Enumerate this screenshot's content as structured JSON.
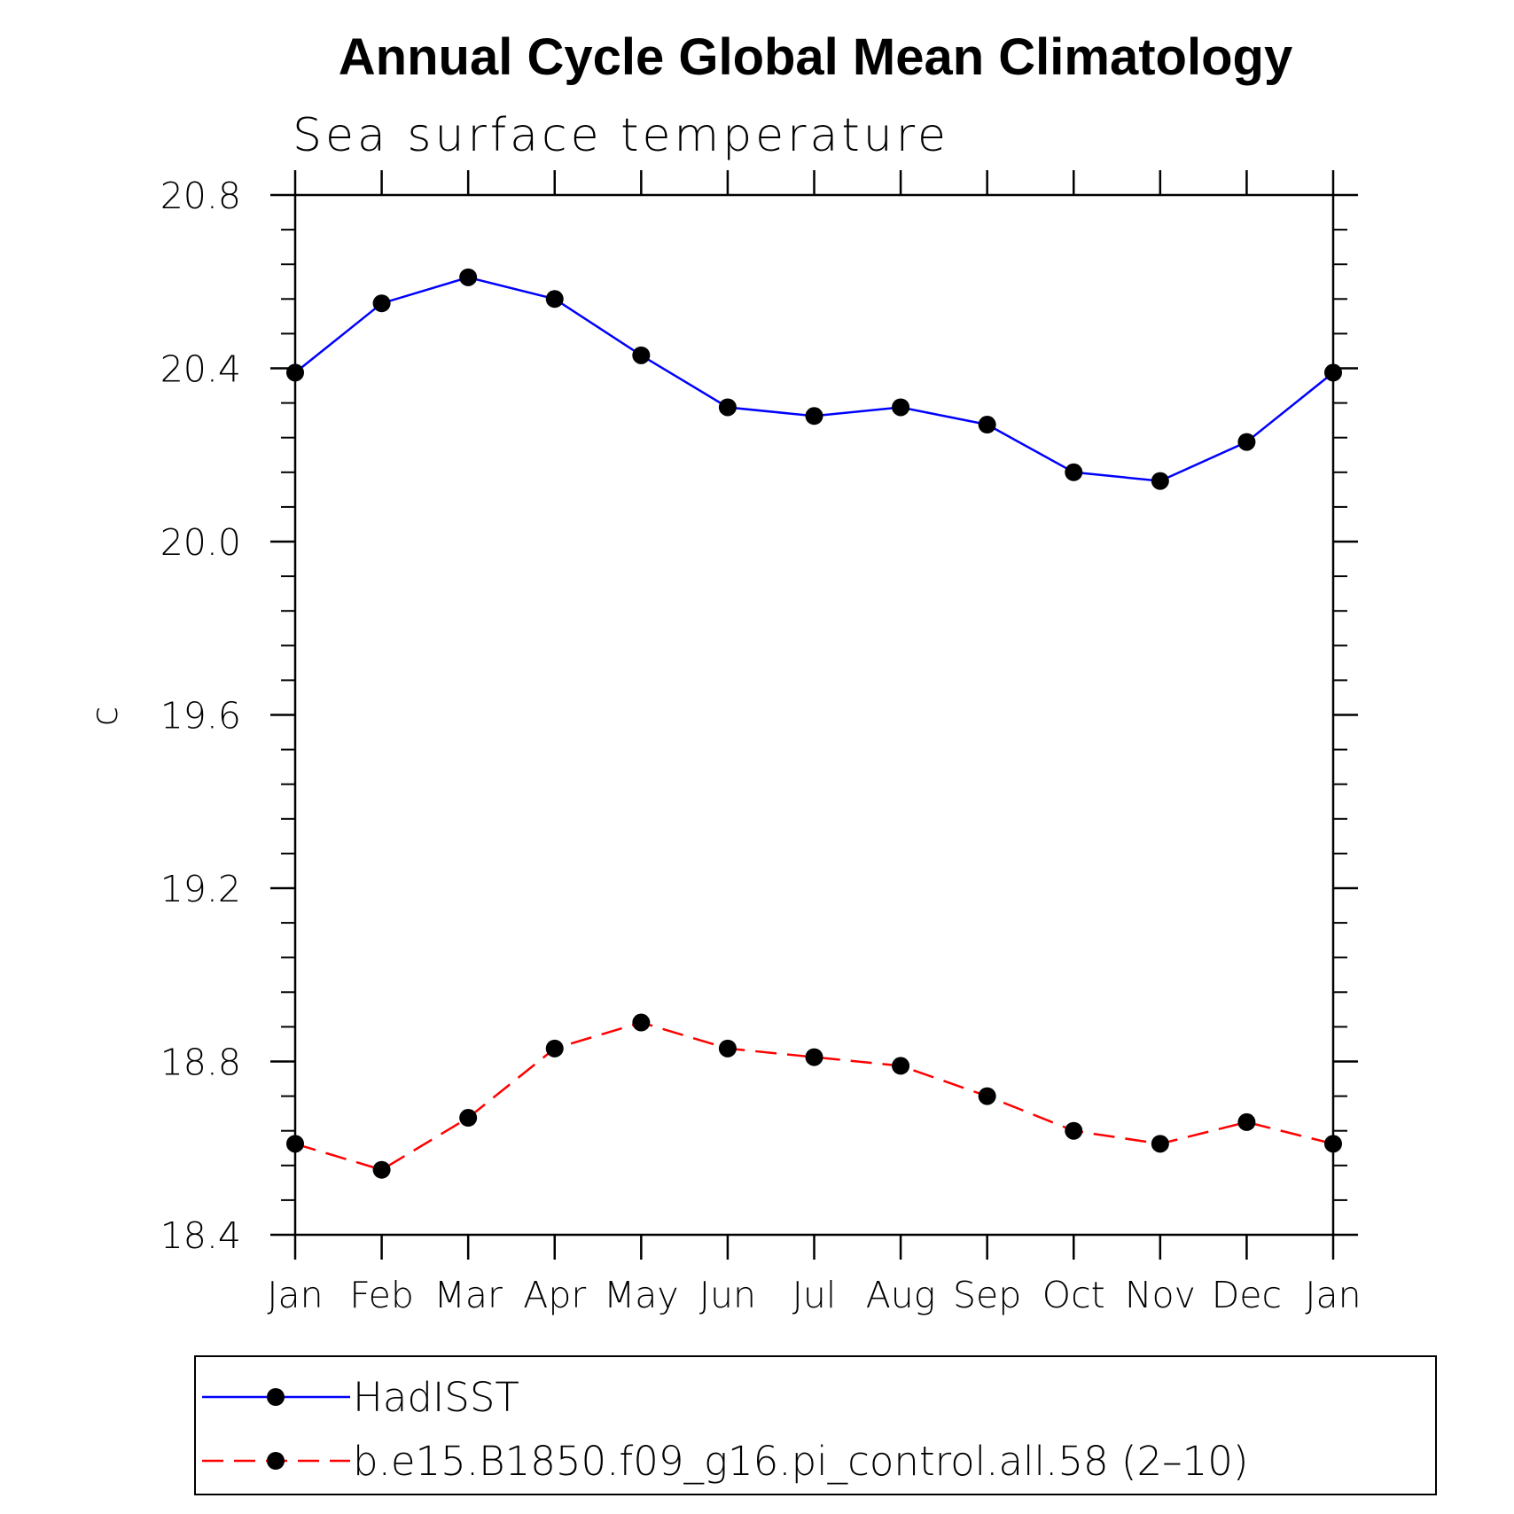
{
  "chart_data": {
    "type": "line",
    "title": "Annual Cycle Global Mean Climatology",
    "subtitle": "Sea surface temperature",
    "ylabel": "c",
    "xlabel": "",
    "categories": [
      "Jan",
      "Feb",
      "Mar",
      "Apr",
      "May",
      "Jun",
      "Jul",
      "Aug",
      "Sep",
      "Oct",
      "Nov",
      "Dec",
      "Jan"
    ],
    "ylim": [
      18.4,
      20.8
    ],
    "yticks": [
      "18.4",
      "18.8",
      "19.2",
      "19.6",
      "20.0",
      "20.4",
      "20.8"
    ],
    "grid": false,
    "legend_position": "bottom",
    "series": [
      {
        "name": "HadISST",
        "color": "#0000ff",
        "line_style": "solid",
        "marker": "filled-circle",
        "values": [
          20.39,
          20.55,
          20.61,
          20.56,
          20.43,
          20.31,
          20.29,
          20.31,
          20.27,
          20.16,
          20.14,
          20.23,
          20.39
        ]
      },
      {
        "name": "b.e15.B1850.f09_g16.pi_control.all.58 (2–10)",
        "color": "#ff0000",
        "line_style": "dashed",
        "marker": "filled-circle",
        "values": [
          18.61,
          18.55,
          18.67,
          18.83,
          18.89,
          18.83,
          18.81,
          18.79,
          18.72,
          18.64,
          18.61,
          18.66,
          18.61
        ]
      }
    ]
  }
}
